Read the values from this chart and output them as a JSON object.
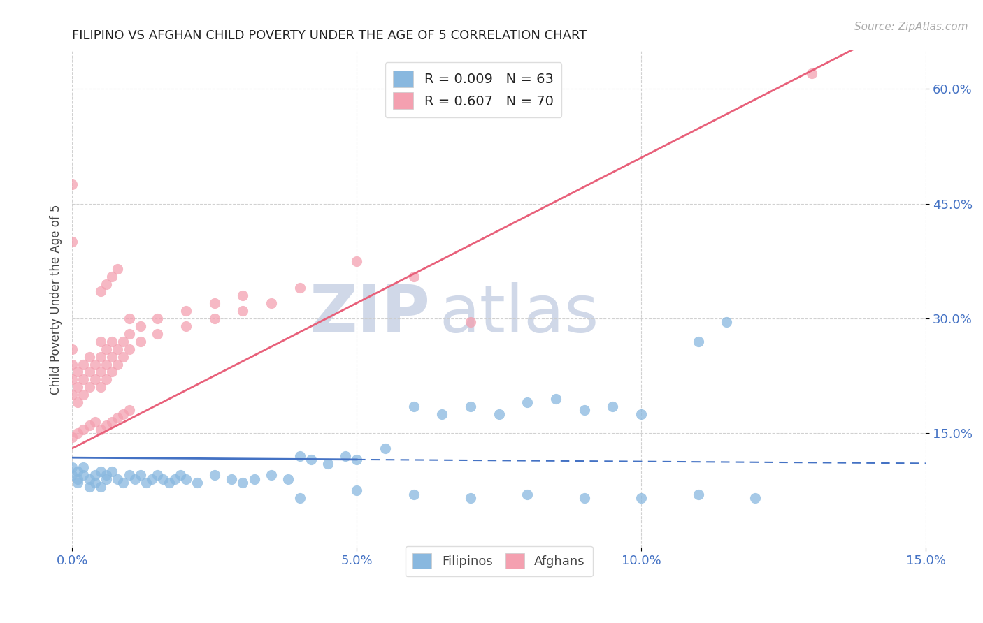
{
  "title": "FILIPINO VS AFGHAN CHILD POVERTY UNDER THE AGE OF 5 CORRELATION CHART",
  "source": "Source: ZipAtlas.com",
  "ylabel": "Child Poverty Under the Age of 5",
  "xlim": [
    0.0,
    0.15
  ],
  "ylim": [
    0.0,
    0.65
  ],
  "xtick_vals": [
    0.0,
    0.05,
    0.1,
    0.15
  ],
  "xtick_labels": [
    "0.0%",
    "5.0%",
    "10.0%",
    "15.0%"
  ],
  "ytick_vals": [
    0.15,
    0.3,
    0.45,
    0.6
  ],
  "ytick_labels": [
    "15.0%",
    "30.0%",
    "45.0%",
    "60.0%"
  ],
  "filipino_color": "#89b8df",
  "afghan_color": "#f4a0b0",
  "filipino_line_color": "#4472c4",
  "afghan_line_color": "#e8607a",
  "tick_color": "#4472c4",
  "legend_r_color": "#4472c4",
  "legend_n_color": "#4472c4",
  "watermark_zip_color": "#d0d8e8",
  "watermark_atlas_color": "#d0d8e8",
  "filipino_scatter": [
    [
      0.0,
      0.105
    ],
    [
      0.0,
      0.095
    ],
    [
      0.001,
      0.09
    ],
    [
      0.001,
      0.1
    ],
    [
      0.001,
      0.085
    ],
    [
      0.002,
      0.095
    ],
    [
      0.002,
      0.105
    ],
    [
      0.003,
      0.08
    ],
    [
      0.003,
      0.09
    ],
    [
      0.004,
      0.095
    ],
    [
      0.004,
      0.085
    ],
    [
      0.005,
      0.1
    ],
    [
      0.005,
      0.08
    ],
    [
      0.006,
      0.095
    ],
    [
      0.006,
      0.09
    ],
    [
      0.007,
      0.1
    ],
    [
      0.008,
      0.09
    ],
    [
      0.009,
      0.085
    ],
    [
      0.01,
      0.095
    ],
    [
      0.011,
      0.09
    ],
    [
      0.012,
      0.095
    ],
    [
      0.013,
      0.085
    ],
    [
      0.014,
      0.09
    ],
    [
      0.015,
      0.095
    ],
    [
      0.016,
      0.09
    ],
    [
      0.017,
      0.085
    ],
    [
      0.018,
      0.09
    ],
    [
      0.019,
      0.095
    ],
    [
      0.02,
      0.09
    ],
    [
      0.022,
      0.085
    ],
    [
      0.025,
      0.095
    ],
    [
      0.028,
      0.09
    ],
    [
      0.03,
      0.085
    ],
    [
      0.032,
      0.09
    ],
    [
      0.035,
      0.095
    ],
    [
      0.038,
      0.09
    ],
    [
      0.04,
      0.12
    ],
    [
      0.042,
      0.115
    ],
    [
      0.045,
      0.11
    ],
    [
      0.048,
      0.12
    ],
    [
      0.05,
      0.115
    ],
    [
      0.055,
      0.13
    ],
    [
      0.06,
      0.185
    ],
    [
      0.065,
      0.175
    ],
    [
      0.07,
      0.185
    ],
    [
      0.075,
      0.175
    ],
    [
      0.08,
      0.19
    ],
    [
      0.085,
      0.195
    ],
    [
      0.09,
      0.18
    ],
    [
      0.095,
      0.185
    ],
    [
      0.1,
      0.175
    ],
    [
      0.11,
      0.27
    ],
    [
      0.115,
      0.295
    ],
    [
      0.04,
      0.065
    ],
    [
      0.05,
      0.075
    ],
    [
      0.06,
      0.07
    ],
    [
      0.07,
      0.065
    ],
    [
      0.08,
      0.07
    ],
    [
      0.09,
      0.065
    ],
    [
      0.1,
      0.065
    ],
    [
      0.11,
      0.07
    ],
    [
      0.12,
      0.065
    ]
  ],
  "afghan_scatter": [
    [
      0.0,
      0.2
    ],
    [
      0.0,
      0.22
    ],
    [
      0.0,
      0.24
    ],
    [
      0.0,
      0.26
    ],
    [
      0.001,
      0.19
    ],
    [
      0.001,
      0.21
    ],
    [
      0.001,
      0.23
    ],
    [
      0.002,
      0.2
    ],
    [
      0.002,
      0.22
    ],
    [
      0.002,
      0.24
    ],
    [
      0.003,
      0.21
    ],
    [
      0.003,
      0.23
    ],
    [
      0.003,
      0.25
    ],
    [
      0.004,
      0.22
    ],
    [
      0.004,
      0.24
    ],
    [
      0.005,
      0.21
    ],
    [
      0.005,
      0.23
    ],
    [
      0.005,
      0.25
    ],
    [
      0.005,
      0.27
    ],
    [
      0.006,
      0.22
    ],
    [
      0.006,
      0.24
    ],
    [
      0.006,
      0.26
    ],
    [
      0.007,
      0.23
    ],
    [
      0.007,
      0.25
    ],
    [
      0.007,
      0.27
    ],
    [
      0.008,
      0.24
    ],
    [
      0.008,
      0.26
    ],
    [
      0.009,
      0.25
    ],
    [
      0.009,
      0.27
    ],
    [
      0.01,
      0.26
    ],
    [
      0.01,
      0.28
    ],
    [
      0.01,
      0.3
    ],
    [
      0.012,
      0.27
    ],
    [
      0.012,
      0.29
    ],
    [
      0.015,
      0.28
    ],
    [
      0.015,
      0.3
    ],
    [
      0.02,
      0.29
    ],
    [
      0.02,
      0.31
    ],
    [
      0.025,
      0.3
    ],
    [
      0.025,
      0.32
    ],
    [
      0.03,
      0.31
    ],
    [
      0.03,
      0.33
    ],
    [
      0.035,
      0.32
    ],
    [
      0.04,
      0.34
    ],
    [
      0.05,
      0.375
    ],
    [
      0.0,
      0.475
    ],
    [
      0.0,
      0.4
    ],
    [
      0.005,
      0.335
    ],
    [
      0.006,
      0.345
    ],
    [
      0.007,
      0.355
    ],
    [
      0.008,
      0.365
    ],
    [
      0.0,
      0.145
    ],
    [
      0.001,
      0.15
    ],
    [
      0.002,
      0.155
    ],
    [
      0.003,
      0.16
    ],
    [
      0.004,
      0.165
    ],
    [
      0.005,
      0.155
    ],
    [
      0.006,
      0.16
    ],
    [
      0.007,
      0.165
    ],
    [
      0.008,
      0.17
    ],
    [
      0.009,
      0.175
    ],
    [
      0.01,
      0.18
    ],
    [
      0.06,
      0.355
    ],
    [
      0.07,
      0.295
    ],
    [
      0.13,
      0.62
    ]
  ],
  "filipino_line_x_solid_end": 0.05,
  "filipino_line_intercept": 0.118,
  "filipino_line_slope": -0.05,
  "afghan_line_intercept": 0.13,
  "afghan_line_slope": 3.8
}
